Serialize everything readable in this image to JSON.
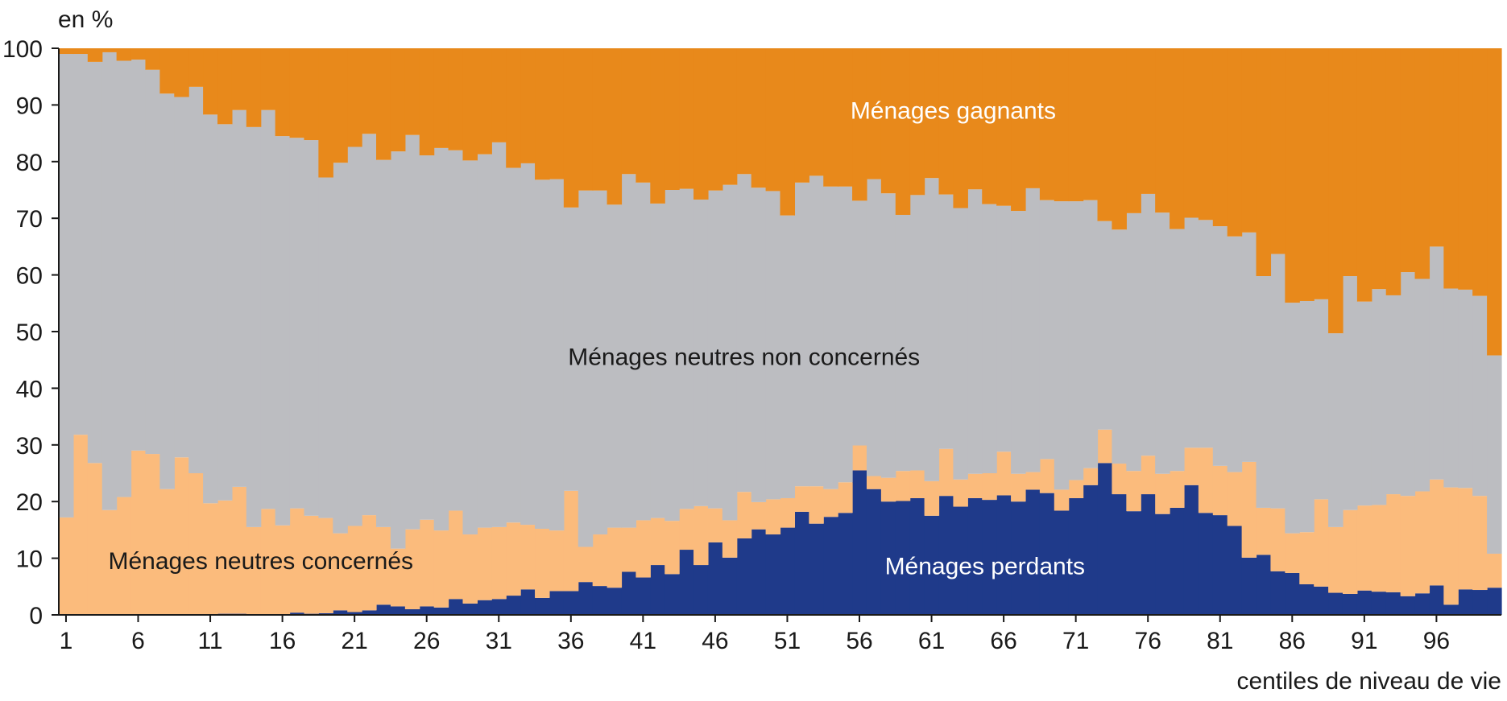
{
  "chart_data": {
    "type": "area",
    "stacking": "percent",
    "ylabel": "en %",
    "xlabel": "centiles de niveau de vie",
    "ylim": [
      0,
      100
    ],
    "xlim": [
      1,
      100
    ],
    "y_ticks": [
      0,
      10,
      20,
      30,
      40,
      50,
      60,
      70,
      80,
      90,
      100
    ],
    "x_ticks": [
      1,
      6,
      11,
      16,
      21,
      26,
      31,
      36,
      41,
      46,
      51,
      56,
      61,
      66,
      71,
      76,
      81,
      86,
      91,
      96
    ],
    "grid": false,
    "legend": "none (series labelled inside areas)",
    "x": [
      1,
      2,
      3,
      4,
      5,
      6,
      7,
      8,
      9,
      10,
      11,
      12,
      13,
      14,
      15,
      16,
      17,
      18,
      19,
      20,
      21,
      22,
      23,
      24,
      25,
      26,
      27,
      28,
      29,
      30,
      31,
      32,
      33,
      34,
      35,
      36,
      37,
      38,
      39,
      40,
      41,
      42,
      43,
      44,
      45,
      46,
      47,
      48,
      49,
      50,
      51,
      52,
      53,
      54,
      55,
      56,
      57,
      58,
      59,
      60,
      61,
      62,
      63,
      64,
      65,
      66,
      67,
      68,
      69,
      70,
      71,
      72,
      73,
      74,
      75,
      76,
      77,
      78,
      79,
      80,
      81,
      82,
      83,
      84,
      85,
      86,
      87,
      88,
      89,
      90,
      91,
      92,
      93,
      94,
      95,
      96,
      97,
      98,
      99,
      100
    ],
    "series": [
      {
        "name": "Ménages perdants",
        "color": "#1f3a8a",
        "label_color": "#ffffff",
        "values": [
          0,
          0,
          0,
          0,
          0,
          0,
          0,
          0,
          0,
          0,
          0,
          0.2,
          0.2,
          0,
          0,
          0,
          0.4,
          0.2,
          0.3,
          0.8,
          0.5,
          0.8,
          1.8,
          1.5,
          1,
          1.5,
          1.3,
          2.8,
          2,
          2.6,
          2.8,
          3.4,
          4.5,
          3,
          4.2,
          4.2,
          5.8,
          5.1,
          4.8,
          7.6,
          6.6,
          8.8,
          7.2,
          11.5,
          8.8,
          12.8,
          10.1,
          13.5,
          15.1,
          14.2,
          15.4,
          18.2,
          16.1,
          17.3,
          18,
          25.5,
          22.2,
          20,
          20.1,
          20.6,
          17.5,
          21,
          19.1,
          20.6,
          20.3,
          21.1,
          20,
          22.1,
          21.5,
          18.4,
          20.6,
          22.9,
          26.8,
          21.3,
          18.3,
          21.3,
          17.8,
          18.9,
          22.9,
          18,
          17.6,
          15.7,
          10.1,
          10.6,
          7.7,
          7.4,
          5.4,
          5,
          3.9,
          3.7,
          4.3,
          4.1,
          4,
          3.3,
          3.8,
          5.2,
          1.8,
          4.5,
          4.4,
          4.8
        ]
      },
      {
        "name": "Ménages neutres concernés",
        "color": "#fbbb7c",
        "label_color": "#1a1a1a",
        "values": [
          17.2,
          31.8,
          26.8,
          18.5,
          20.8,
          29,
          28.4,
          22.2,
          27.8,
          25,
          19.7,
          20,
          22.4,
          15.5,
          18.7,
          15.8,
          18.4,
          17.3,
          16.8,
          13.6,
          15.2,
          16.8,
          13.7,
          10.2,
          14.1,
          15.3,
          13.6,
          15.6,
          12.2,
          12.8,
          12.7,
          12.9,
          11.4,
          12.2,
          10.7,
          17.7,
          6.2,
          9.1,
          10.6,
          7.8,
          10.1,
          8.3,
          9.4,
          7.2,
          10.4,
          6,
          6.6,
          8.2,
          4.8,
          6.2,
          5.2,
          4.5,
          6.6,
          4.9,
          5.4,
          4.4,
          2.3,
          4.2,
          5.3,
          4.9,
          6.1,
          8.3,
          4.8,
          4.3,
          4.7,
          7.7,
          4.9,
          3.1,
          6,
          3.7,
          3.2,
          3,
          5.9,
          5.4,
          7.1,
          6.8,
          7.1,
          6.5,
          6.6,
          11.5,
          8.7,
          9.5,
          16.9,
          8.3,
          11.1,
          7,
          9.2,
          15.4,
          11.6,
          14.8,
          15,
          15.3,
          17.3,
          17.7,
          18,
          18.7,
          20.7,
          17.9,
          16.6,
          6
        ]
      },
      {
        "name": "Ménages neutres non concernés",
        "color": "#bcbdc1",
        "label_color": "#1a1a1a",
        "values": [
          81.8,
          67.2,
          70.8,
          80.8,
          77,
          69,
          67.8,
          69.8,
          63.6,
          68.2,
          68.6,
          66.4,
          66.5,
          70.6,
          70.4,
          68.7,
          65.4,
          66.3,
          60.1,
          65.4,
          66.9,
          67.3,
          64.8,
          70.1,
          69.6,
          64.3,
          67.5,
          63.6,
          66,
          65.9,
          67.9,
          62.6,
          63.8,
          61.6,
          62,
          50,
          62.9,
          60.7,
          57,
          62.4,
          59.6,
          55.5,
          58.4,
          56.5,
          54.1,
          56.1,
          59.2,
          56.1,
          55.5,
          54.4,
          49.9,
          53.6,
          54.8,
          53.4,
          52.2,
          43.2,
          52.4,
          50.2,
          45.2,
          48.6,
          53.5,
          44.9,
          47.9,
          50.2,
          47.5,
          43.4,
          46.4,
          50.1,
          45.7,
          50.9,
          49.2,
          47.3,
          36.8,
          41.3,
          45.5,
          46.2,
          46.1,
          42.7,
          40.6,
          40.2,
          42.3,
          41.6,
          40.5,
          40.9,
          44.9,
          40.7,
          40.8,
          35.3,
          34.2,
          41.3,
          36,
          38.1,
          35.1,
          39.5,
          37.5,
          41.1,
          35.1,
          35,
          35.3,
          35
        ]
      },
      {
        "name": "Ménages gagnants",
        "color": "#e8891b",
        "label_color": "#ffffff",
        "values": [
          1,
          1,
          2.4,
          0.7,
          2.2,
          2,
          3.8,
          8,
          8.6,
          6.8,
          11.7,
          13.4,
          10.9,
          13.9,
          10.9,
          15.5,
          15.8,
          16.2,
          22.8,
          20.2,
          17.4,
          15.1,
          19.7,
          18.2,
          15.3,
          18.9,
          17.6,
          18,
          19.8,
          18.7,
          16.6,
          21.1,
          20.3,
          23.2,
          23.1,
          28.1,
          25.1,
          27.2,
          27.6,
          22.2,
          23.7,
          27.4,
          25,
          24.8,
          26.7,
          25.1,
          24.1,
          22.2,
          24.6,
          25.2,
          29.5,
          23.7,
          22.5,
          24.4,
          24.4,
          26.9,
          23.1,
          25.6,
          29.4,
          25.9,
          22.9,
          25.8,
          28.2,
          24.9,
          27.5,
          27.8,
          28.7,
          24.7,
          26.8,
          27,
          27,
          26.8,
          30.5,
          32,
          29.1,
          25.7,
          29,
          31.9,
          29.9,
          30.3,
          31.4,
          33.2,
          32.5,
          40.2,
          36.3,
          44.9,
          44.6,
          44.3,
          50.3,
          40.2,
          44.7,
          42.5,
          43.6,
          39.5,
          40.7,
          35,
          42.4,
          42.6,
          43.7,
          54.2
        ]
      }
    ],
    "annotations": [
      {
        "text": "Ménages gagnants",
        "series": "Ménages gagnants",
        "x": 62.5,
        "y": 89
      },
      {
        "text": "Ménages neutres non concernés",
        "series": "Ménages neutres non concernés",
        "x": 48,
        "y": 45.5
      },
      {
        "text": "Ménages neutres concernés",
        "series": "Ménages neutres concernés",
        "x": 14.5,
        "y": 9.5
      },
      {
        "text": "Ménages perdants",
        "series": "Ménages perdants",
        "x": 64.7,
        "y": 8.6
      }
    ]
  }
}
